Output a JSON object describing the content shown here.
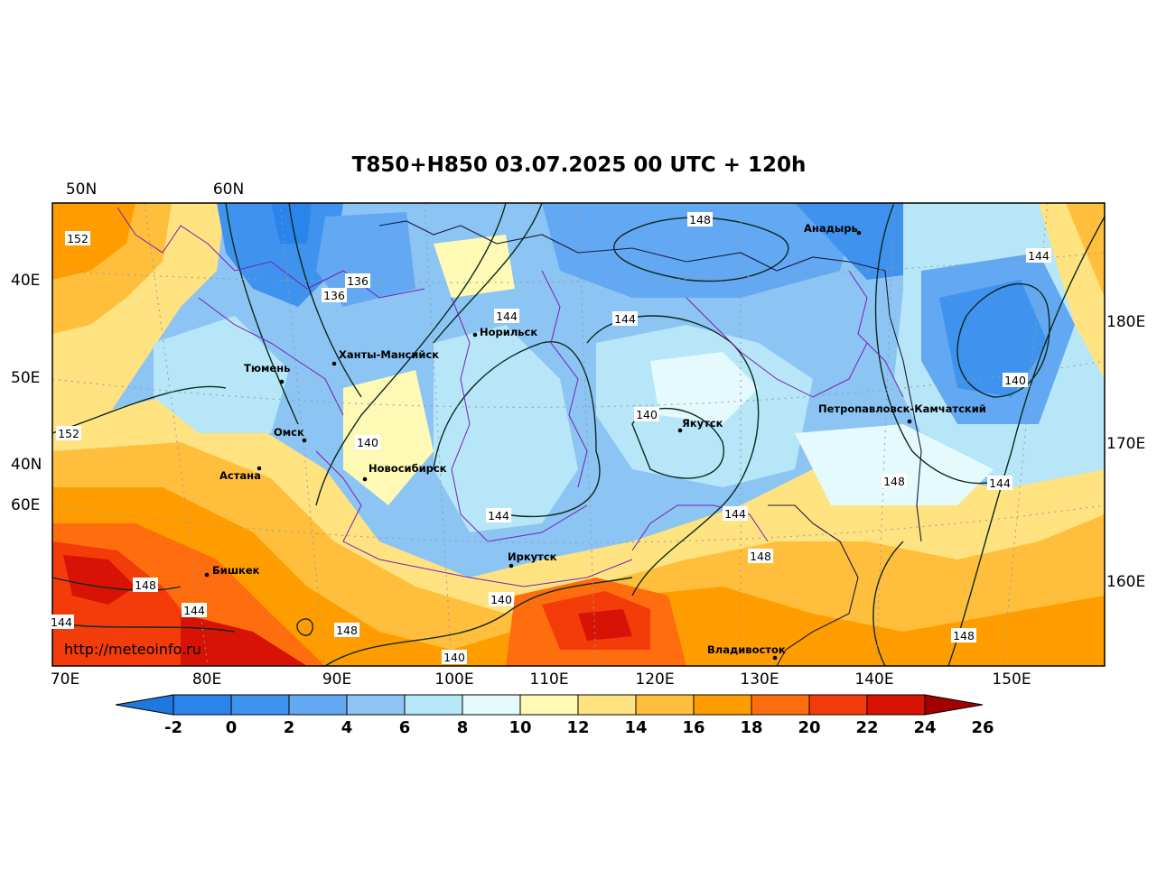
{
  "title": "T850+H850 03.07.2025 00 UTC + 120h",
  "watermark": "http://meteoinfo.ru",
  "axis_labels": {
    "top": [
      "50N",
      "60N"
    ],
    "left": [
      "40E",
      "50E",
      "40N",
      "60E"
    ],
    "right": [
      "180E",
      "170E",
      "160E"
    ],
    "bottom": [
      "70E",
      "80E",
      "90E",
      "100E",
      "110E",
      "120E",
      "130E",
      "140E",
      "150E"
    ]
  },
  "colorbar": {
    "ticks": [
      "-2",
      "0",
      "2",
      "4",
      "6",
      "8",
      "10",
      "12",
      "14",
      "16",
      "18",
      "20",
      "22",
      "24",
      "26"
    ],
    "colors": [
      "#1f78e0",
      "#2a84ec",
      "#3f93ee",
      "#62a8f2",
      "#8cc4f4",
      "#b6e6f8",
      "#e4fafd",
      "#fff9b6",
      "#ffe380",
      "#ffbf3c",
      "#ff9d00",
      "#ff6e0e",
      "#f43b0a",
      "#d81306",
      "#a30000"
    ]
  },
  "cities": [
    {
      "name": "Анадырь"
    },
    {
      "name": "Норильск"
    },
    {
      "name": "Ханты-Мансийск"
    },
    {
      "name": "Тюмень"
    },
    {
      "name": "Омск"
    },
    {
      "name": "Астана"
    },
    {
      "name": "Новосибирск"
    },
    {
      "name": "Якутск"
    },
    {
      "name": "Петропавловск-Камчатский"
    },
    {
      "name": "Иркутск"
    },
    {
      "name": "Бишкек"
    },
    {
      "name": "Владивосток"
    }
  ],
  "contour_labels": [
    "152",
    "136",
    "136",
    "148",
    "144",
    "144",
    "144",
    "140",
    "140",
    "152",
    "140",
    "148",
    "144",
    "144",
    "144",
    "148",
    "148",
    "140",
    "144",
    "144",
    "148",
    "140",
    "148"
  ]
}
